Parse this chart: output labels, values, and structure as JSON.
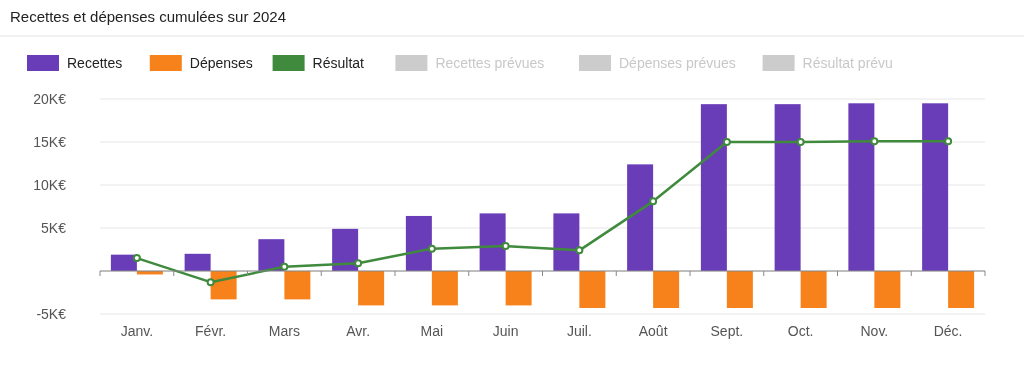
{
  "chart_data": {
    "type": "bar",
    "title": "Recettes et dépenses cumulées sur 2024",
    "categories": [
      "Janv.",
      "Févr.",
      "Mars",
      "Avr.",
      "Mai",
      "Juin",
      "Juil.",
      "Août",
      "Sept.",
      "Oct.",
      "Nov.",
      "Déc."
    ],
    "series": [
      {
        "name": "Recettes",
        "color": "#6a3db8",
        "values": [
          1900,
          2000,
          3700,
          4900,
          6400,
          6700,
          6700,
          12400,
          19400,
          19400,
          19500,
          19500
        ]
      },
      {
        "name": "Dépenses",
        "color": "#f7821b",
        "values": [
          -400,
          -3300,
          -3300,
          -4000,
          -4000,
          -4000,
          -4300,
          -4300,
          -4300,
          -4300,
          -4300,
          -4300
        ]
      },
      {
        "name": "Résultat",
        "type": "line",
        "color": "#3f8a3c",
        "values": [
          1500,
          -1300,
          500,
          900,
          2600,
          2900,
          2400,
          8100,
          15000,
          15000,
          15100,
          15100
        ]
      },
      {
        "name": "Recettes prévues",
        "color": "#cccccc",
        "values": [
          null,
          null,
          null,
          null,
          null,
          null,
          null,
          null,
          null,
          null,
          null,
          null
        ]
      },
      {
        "name": "Dépenses prévues",
        "color": "#cccccc",
        "values": [
          null,
          null,
          null,
          null,
          null,
          null,
          null,
          null,
          null,
          null,
          null,
          null
        ]
      },
      {
        "name": "Résultat prévu",
        "type": "line",
        "color": "#cccccc",
        "values": [
          null,
          null,
          null,
          null,
          null,
          null,
          null,
          null,
          null,
          null,
          null,
          null
        ]
      }
    ],
    "ylim": [
      -5000,
      20000
    ],
    "yticks": [
      {
        "value": -5000,
        "label": "-5K€"
      },
      {
        "value": 0,
        "label": null
      },
      {
        "value": 5000,
        "label": "5K€"
      },
      {
        "value": 10000,
        "label": "10K€"
      },
      {
        "value": 15000,
        "label": "15K€"
      },
      {
        "value": 20000,
        "label": "20K€"
      }
    ],
    "grid": "y",
    "legend": "top left",
    "marker": "circle"
  }
}
